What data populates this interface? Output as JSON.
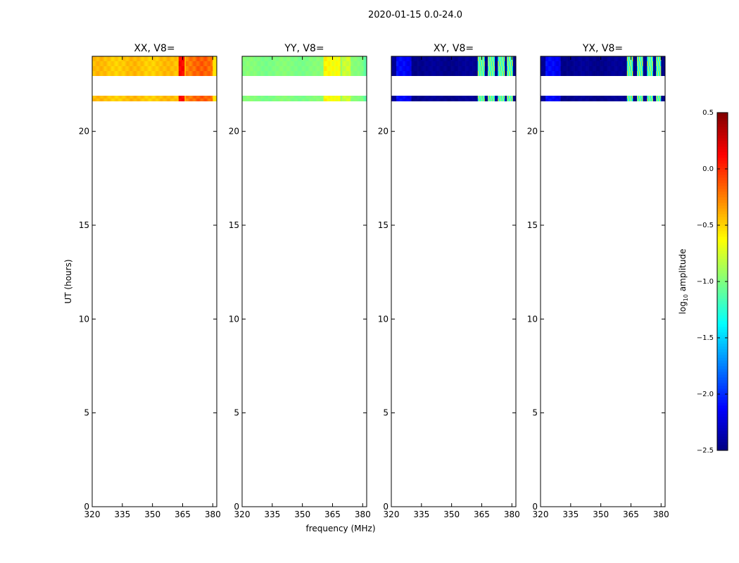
{
  "figure": {
    "suptitle": "2020-01-15 0.0-24.0",
    "xlabel": "frequency (MHz)",
    "ylabel": "UT (hours)"
  },
  "chart_data": {
    "type": "heatmap",
    "panels": [
      {
        "title": "XX, V8=",
        "style": "xx"
      },
      {
        "title": "YY, V8=",
        "style": "yy"
      },
      {
        "title": "XY, V8=",
        "style": "xy"
      },
      {
        "title": "YX, V8=",
        "style": "yx"
      }
    ],
    "xlim": [
      320,
      382
    ],
    "ylim": [
      0,
      24
    ],
    "xticks": [
      320,
      335,
      350,
      365,
      380
    ],
    "yticks": [
      0,
      5,
      10,
      15,
      20
    ],
    "data_rows_ut": [
      {
        "from": 22.95,
        "to": 24.0
      },
      {
        "from": 21.6,
        "to": 21.9
      }
    ],
    "colorbar": {
      "label_main": "log",
      "label_sub": "10",
      "label_rest": " amplitude",
      "colormap": "jet",
      "range": [
        -2.5,
        0.5
      ],
      "ticks": [
        "0.5",
        "0.0",
        "−0.5",
        "−1.0",
        "−1.5",
        "−2.0",
        "−2.5"
      ],
      "tick_values": [
        0.5,
        0.0,
        -0.5,
        -1.0,
        -1.5,
        -2.0,
        -2.5
      ]
    }
  }
}
